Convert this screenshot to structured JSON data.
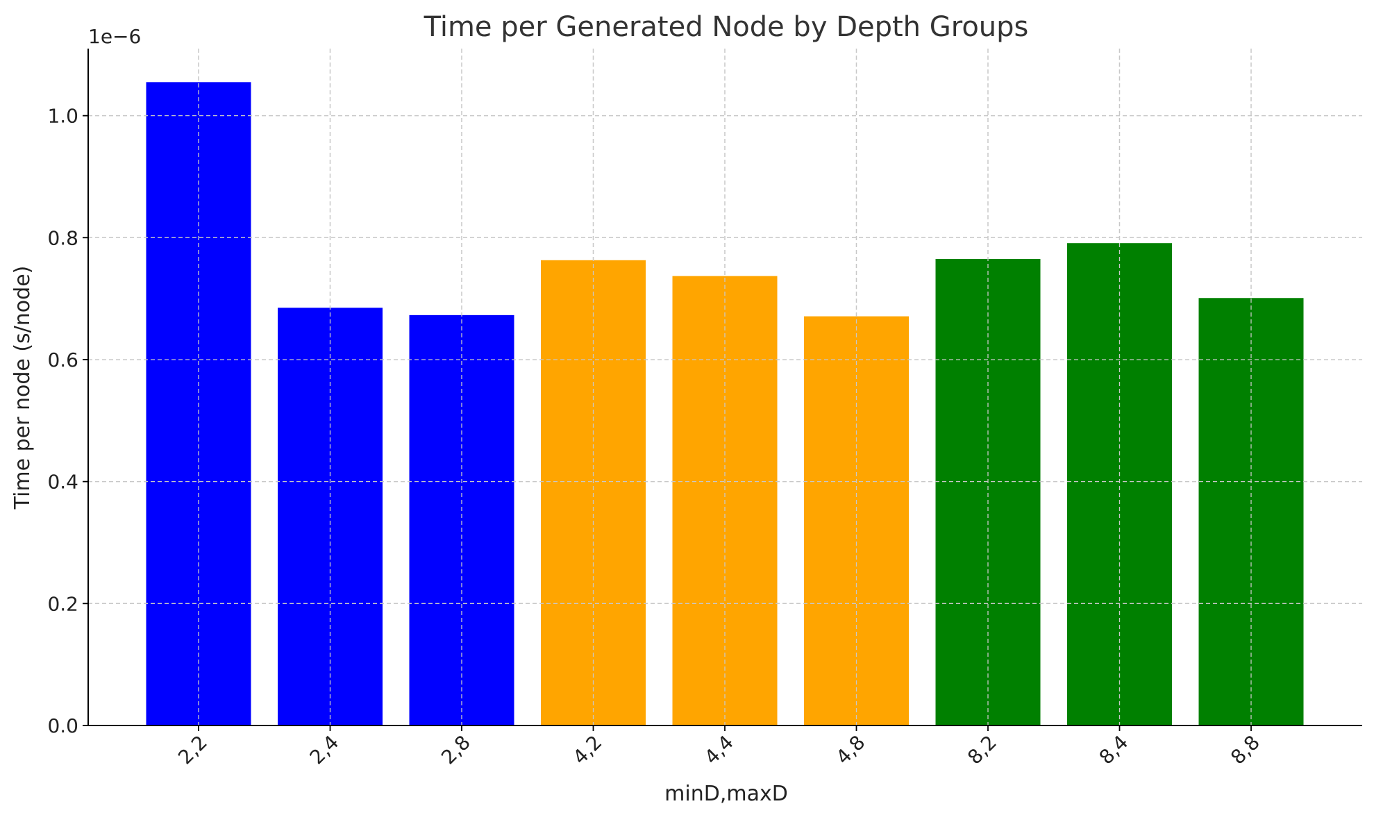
{
  "chart_data": {
    "type": "bar",
    "title": "Time per Generated Node by Depth Groups",
    "xlabel": "minD,maxD",
    "ylabel": "Time per node (s/node)",
    "y_offset_label": "1e−6",
    "categories": [
      "2,2",
      "2,4",
      "2,8",
      "4,2",
      "4,4",
      "4,8",
      "8,2",
      "8,4",
      "8,8"
    ],
    "values": [
      1.055e-06,
      6.85e-07,
      6.73e-07,
      7.63e-07,
      7.37e-07,
      6.71e-07,
      7.65e-07,
      7.91e-07,
      7.01e-07
    ],
    "colors": [
      "#0000ff",
      "#0000ff",
      "#0000ff",
      "#ffa500",
      "#ffa500",
      "#ffa500",
      "#008000",
      "#008000",
      "#008000"
    ],
    "ylim": [
      0,
      1.11e-06
    ],
    "y_ticks": [
      0,
      2e-07,
      4e-07,
      6e-07,
      8e-07,
      1e-06
    ],
    "y_tick_labels": [
      "0.0",
      "0.2",
      "0.4",
      "0.6",
      "0.8",
      "1.0"
    ],
    "grid": true,
    "legend": "none"
  }
}
